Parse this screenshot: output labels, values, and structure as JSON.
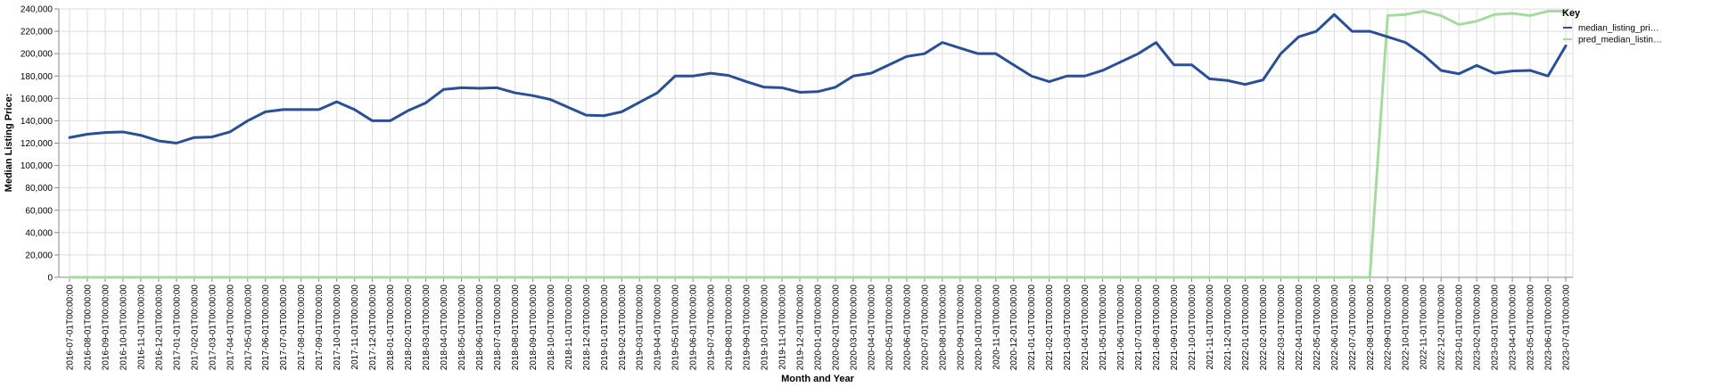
{
  "chart_data": {
    "type": "line",
    "xlabel": "Month and Year",
    "ylabel": "Median Listing Price:",
    "ylim": [
      0,
      240000
    ],
    "y_ticks": [
      "0",
      "20,000",
      "40,000",
      "60,000",
      "80,000",
      "100,000",
      "120,000",
      "140,000",
      "160,000",
      "180,000",
      "200,000",
      "220,000",
      "240,000"
    ],
    "grid": true,
    "legend": {
      "title": "Key",
      "placement": "right"
    },
    "x": [
      "2016-07-01T00:00:00",
      "2016-08-01T00:00:00",
      "2016-09-01T00:00:00",
      "2016-10-01T00:00:00",
      "2016-11-01T00:00:00",
      "2016-12-01T00:00:00",
      "2017-01-01T00:00:00",
      "2017-02-01T00:00:00",
      "2017-03-01T00:00:00",
      "2017-04-01T00:00:00",
      "2017-05-01T00:00:00",
      "2017-06-01T00:00:00",
      "2017-07-01T00:00:00",
      "2017-08-01T00:00:00",
      "2017-09-01T00:00:00",
      "2017-10-01T00:00:00",
      "2017-11-01T00:00:00",
      "2017-12-01T00:00:00",
      "2018-01-01T00:00:00",
      "2018-02-01T00:00:00",
      "2018-03-01T00:00:00",
      "2018-04-01T00:00:00",
      "2018-05-01T00:00:00",
      "2018-06-01T00:00:00",
      "2018-07-01T00:00:00",
      "2018-08-01T00:00:00",
      "2018-09-01T00:00:00",
      "2018-10-01T00:00:00",
      "2018-11-01T00:00:00",
      "2018-12-01T00:00:00",
      "2019-01-01T00:00:00",
      "2019-02-01T00:00:00",
      "2019-03-01T00:00:00",
      "2019-04-01T00:00:00",
      "2019-05-01T00:00:00",
      "2019-06-01T00:00:00",
      "2019-07-01T00:00:00",
      "2019-08-01T00:00:00",
      "2019-09-01T00:00:00",
      "2019-10-01T00:00:00",
      "2019-11-01T00:00:00",
      "2019-12-01T00:00:00",
      "2020-01-01T00:00:00",
      "2020-02-01T00:00:00",
      "2020-03-01T00:00:00",
      "2020-04-01T00:00:00",
      "2020-05-01T00:00:00",
      "2020-06-01T00:00:00",
      "2020-07-01T00:00:00",
      "2020-08-01T00:00:00",
      "2020-09-01T00:00:00",
      "2020-10-01T00:00:00",
      "2020-11-01T00:00:00",
      "2020-12-01T00:00:00",
      "2021-01-01T00:00:00",
      "2021-02-01T00:00:00",
      "2021-03-01T00:00:00",
      "2021-04-01T00:00:00",
      "2021-05-01T00:00:00",
      "2021-06-01T00:00:00",
      "2021-07-01T00:00:00",
      "2021-08-01T00:00:00",
      "2021-09-01T00:00:00",
      "2021-10-01T00:00:00",
      "2021-11-01T00:00:00",
      "2021-12-01T00:00:00",
      "2022-01-01T00:00:00",
      "2022-02-01T00:00:00",
      "2022-03-01T00:00:00",
      "2022-04-01T00:00:00",
      "2022-05-01T00:00:00",
      "2022-06-01T00:00:00",
      "2022-07-01T00:00:00",
      "2022-08-01T00:00:00",
      "2022-09-01T00:00:00",
      "2022-10-01T00:00:00",
      "2022-11-01T00:00:00",
      "2022-12-01T00:00:00",
      "2023-01-01T00:00:00",
      "2023-02-01T00:00:00",
      "2023-03-01T00:00:00",
      "2023-04-01T00:00:00",
      "2023-05-01T00:00:00",
      "2023-06-01T00:00:00",
      "2023-07-01T00:00:00"
    ],
    "series": [
      {
        "name": "median_listing_pri…",
        "color": "#2a4f97",
        "values": [
          125000,
          128000,
          129500,
          130000,
          127000,
          122000,
          120000,
          125000,
          125500,
          130000,
          140000,
          148000,
          150000,
          150000,
          150000,
          157000,
          150000,
          140000,
          140000,
          149000,
          156000,
          168000,
          169500,
          169000,
          169500,
          165000,
          162500,
          159000,
          152000,
          145000,
          144500,
          148000,
          156500,
          165000,
          180000,
          180000,
          182500,
          180500,
          175000,
          170000,
          169500,
          165500,
          166000,
          170000,
          180000,
          182500,
          190000,
          197500,
          200000,
          210000,
          205000,
          200000,
          200000,
          190000,
          180000,
          175000,
          180000,
          180000,
          185000,
          192500,
          200000,
          210000,
          190000,
          190000,
          177500,
          176000,
          172500,
          176500,
          200000,
          215000,
          220000,
          235000,
          220000,
          220000,
          215000,
          210000,
          199000,
          185000,
          182000,
          189500,
          182500,
          184500,
          185000,
          180000,
          207000
        ]
      },
      {
        "name": "pred_median_listin…",
        "color": "#a6dba0",
        "values": [
          0,
          0,
          0,
          0,
          0,
          0,
          0,
          0,
          0,
          0,
          0,
          0,
          0,
          0,
          0,
          0,
          0,
          0,
          0,
          0,
          0,
          0,
          0,
          0,
          0,
          0,
          0,
          0,
          0,
          0,
          0,
          0,
          0,
          0,
          0,
          0,
          0,
          0,
          0,
          0,
          0,
          0,
          0,
          0,
          0,
          0,
          0,
          0,
          0,
          0,
          0,
          0,
          0,
          0,
          0,
          0,
          0,
          0,
          0,
          0,
          0,
          0,
          0,
          0,
          0,
          0,
          0,
          0,
          0,
          0,
          0,
          0,
          0,
          0,
          234000,
          235000,
          238000,
          234000,
          226000,
          229000,
          235000,
          236000,
          234000,
          238000,
          238000
        ]
      }
    ]
  }
}
